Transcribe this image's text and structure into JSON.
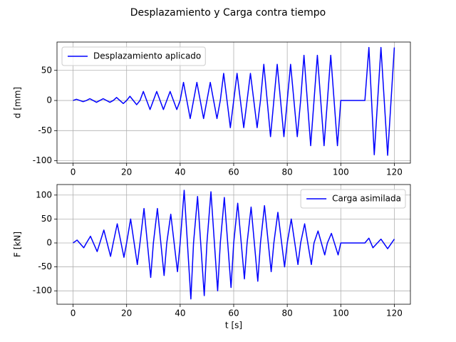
{
  "title": "Desplazamiento y Carga contra tiempo",
  "chart_data": [
    {
      "type": "line",
      "ylabel": "d [mm]",
      "legend": "upper left",
      "grid": true,
      "xlim": [
        -6,
        126
      ],
      "ylim": [
        -104,
        97
      ],
      "xticks": [
        0,
        20,
        40,
        60,
        80,
        100,
        120
      ],
      "yticks": [
        -100,
        -50,
        0,
        50
      ],
      "x": [
        0,
        1.25,
        3.75,
        5,
        6.25,
        8.75,
        10,
        11.25,
        13.75,
        15,
        16.25,
        18.75,
        20,
        21.25,
        23.75,
        25,
        26.25,
        28.75,
        30,
        31.25,
        33.75,
        35,
        36.25,
        38.75,
        40,
        41.25,
        43.75,
        45,
        46.25,
        48.75,
        50,
        51.25,
        53.75,
        55,
        56.25,
        58.75,
        60,
        61.25,
        63.75,
        65,
        66.25,
        68.75,
        70,
        71.25,
        73.75,
        75,
        76.25,
        78.75,
        80,
        81.25,
        83.75,
        85,
        86.25,
        88.75,
        90,
        91.25,
        93.75,
        95,
        96.25,
        98.75,
        100,
        109,
        110.5,
        112.5,
        115,
        117.5,
        120
      ],
      "series": [
        {
          "name": "Desplazamiento aplicado",
          "color": "#0000ff",
          "values": [
            0,
            2,
            -2,
            0,
            3,
            -3,
            0,
            3,
            -3,
            0,
            5,
            -5,
            0,
            7,
            -7,
            0,
            15,
            -15,
            0,
            15,
            -15,
            0,
            15,
            -15,
            0,
            30,
            -30,
            0,
            30,
            -30,
            0,
            30,
            -30,
            0,
            45,
            -45,
            0,
            45,
            -45,
            0,
            45,
            -45,
            0,
            60,
            -60,
            0,
            60,
            -60,
            0,
            60,
            -60,
            0,
            75,
            -75,
            0,
            75,
            -75,
            0,
            75,
            -75,
            0,
            0,
            88,
            -90,
            88,
            -91,
            88
          ]
        }
      ]
    },
    {
      "type": "line",
      "xlabel": "t [s]",
      "ylabel": "F [kN]",
      "legend": "upper right",
      "grid": true,
      "xlim": [
        -6,
        126
      ],
      "ylim": [
        -128,
        122
      ],
      "xticks": [
        0,
        20,
        40,
        60,
        80,
        100,
        120
      ],
      "yticks": [
        -100,
        -50,
        0,
        50,
        100
      ],
      "x": [
        0,
        1.5,
        4,
        5,
        6.5,
        9,
        10,
        11.5,
        14,
        15,
        16.5,
        19,
        20,
        21.5,
        24,
        25,
        26.5,
        29,
        30,
        31.5,
        34,
        35,
        36.5,
        39,
        40,
        41.5,
        44,
        45,
        46.5,
        49,
        50,
        51.5,
        54,
        55,
        56.5,
        59,
        60,
        61.5,
        64,
        65,
        66.5,
        69,
        70,
        71.5,
        74,
        75,
        76.5,
        79,
        80,
        81.5,
        84,
        85,
        86.5,
        89,
        90,
        91.5,
        94,
        95,
        96.5,
        99,
        100,
        109,
        110.5,
        112,
        115,
        117.5,
        120
      ],
      "series": [
        {
          "name": "Carga asimilada",
          "color": "#0000ff",
          "values": [
            0,
            6,
            -10,
            0,
            14,
            -18,
            0,
            27,
            -28,
            0,
            40,
            -30,
            0,
            50,
            -45,
            0,
            72,
            -72,
            0,
            72,
            -68,
            0,
            60,
            -60,
            0,
            110,
            -117,
            0,
            97,
            -110,
            0,
            107,
            -100,
            0,
            95,
            -93,
            0,
            83,
            -75,
            0,
            75,
            -80,
            0,
            78,
            -60,
            0,
            64,
            -50,
            0,
            50,
            -45,
            0,
            40,
            -45,
            0,
            25,
            -25,
            0,
            20,
            -25,
            0,
            0,
            10,
            -10,
            8,
            -12,
            8
          ]
        }
      ]
    }
  ]
}
